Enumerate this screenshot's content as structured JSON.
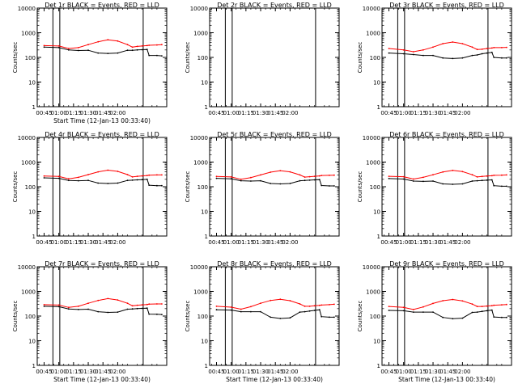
{
  "chart_data": [
    {
      "type": "line",
      "title": "Det 1r BLACK = Events, RED = LLD",
      "xlabel": "Start Time (12-Jan-13 00:33:40)",
      "ylabel": "Counts/sec",
      "yscale": "log",
      "ylim": [
        1,
        10000
      ],
      "xticks": [
        "00:45",
        "01:00",
        "01:15",
        "01:30",
        "01:45",
        "02:00"
      ],
      "yticks": [
        "1",
        "10",
        "100",
        "1000",
        "10000"
      ],
      "x_minutes": [
        -15,
        0,
        10,
        20,
        30,
        40,
        50,
        60,
        70,
        75,
        80,
        85,
        90,
        92,
        100,
        105
      ],
      "series": [
        {
          "color": "#000000",
          "values": [
            260,
            250,
            200,
            190,
            195,
            150,
            145,
            150,
            195,
            195,
            200,
            205,
            210,
            120,
            120,
            115
          ]
        },
        {
          "color": "#ff0000",
          "values": [
            300,
            290,
            230,
            250,
            330,
            430,
            520,
            460,
            330,
            260,
            280,
            290,
            300,
            310,
            320,
            330
          ]
        }
      ],
      "markers_minutes": [
        -6,
        1,
        86
      ]
    },
    {
      "type": "line",
      "title": "Det 2r BLACK = Events, RED = LLD",
      "xlabel": "",
      "ylabel": "Counts/sec",
      "yscale": "log",
      "ylim": [
        1,
        10000
      ],
      "xticks": [
        "00:45",
        "01:00",
        "01:15",
        "01:30",
        "01:45",
        "02:00"
      ],
      "yticks": [
        "1",
        "10",
        "100",
        "1000",
        "10000"
      ],
      "x_minutes": [],
      "series": [],
      "markers_minutes": [
        -6,
        1,
        86
      ]
    },
    {
      "type": "line",
      "title": "Det 3r BLACK = Events, RED = LLD",
      "xlabel": "",
      "ylabel": "Counts/sec",
      "yscale": "log",
      "ylim": [
        1,
        10000
      ],
      "xticks": [
        "00:45",
        "01:00",
        "01:15",
        "01:30",
        "01:45",
        "02:00"
      ],
      "yticks": [
        "1",
        "10",
        "100",
        "1000",
        "10000"
      ],
      "x_minutes": [
        -15,
        0,
        10,
        20,
        30,
        40,
        50,
        60,
        70,
        75,
        80,
        85,
        90,
        92,
        100,
        105
      ],
      "series": [
        {
          "color": "#000000",
          "values": [
            150,
            140,
            130,
            120,
            120,
            95,
            90,
            95,
            120,
            125,
            140,
            150,
            160,
            100,
            95,
            95
          ]
        },
        {
          "color": "#ff0000",
          "values": [
            230,
            200,
            170,
            200,
            260,
            360,
            420,
            360,
            260,
            210,
            215,
            230,
            240,
            250,
            250,
            255
          ]
        }
      ],
      "markers_minutes": [
        -6,
        1,
        86
      ]
    },
    {
      "type": "line",
      "title": "Det 4r BLACK = Events, RED = LLD",
      "xlabel": "",
      "ylabel": "Counts/sec",
      "yscale": "log",
      "ylim": [
        1,
        10000
      ],
      "xticks": [
        "00:45",
        "01:00",
        "01:15",
        "01:30",
        "01:45",
        "02:00"
      ],
      "yticks": [
        "1",
        "10",
        "100",
        "1000",
        "10000"
      ],
      "x_minutes": [
        -15,
        0,
        10,
        20,
        30,
        40,
        50,
        60,
        70,
        75,
        80,
        85,
        90,
        92,
        100,
        105
      ],
      "series": [
        {
          "color": "#000000",
          "values": [
            230,
            220,
            180,
            175,
            180,
            140,
            135,
            140,
            180,
            185,
            190,
            195,
            200,
            115,
            110,
            110
          ]
        },
        {
          "color": "#ff0000",
          "values": [
            270,
            260,
            210,
            240,
            310,
            400,
            470,
            420,
            310,
            250,
            265,
            275,
            285,
            295,
            300,
            300
          ]
        }
      ],
      "markers_minutes": [
        -6,
        1,
        86
      ]
    },
    {
      "type": "line",
      "title": "Det 5r BLACK = Events, RED = LLD",
      "xlabel": "",
      "ylabel": "Counts/sec",
      "yscale": "log",
      "ylim": [
        1,
        10000
      ],
      "xticks": [
        "00:45",
        "01:00",
        "01:15",
        "01:30",
        "01:45",
        "02:00"
      ],
      "yticks": [
        "1",
        "10",
        "100",
        "1000",
        "10000"
      ],
      "x_minutes": [
        -15,
        0,
        10,
        20,
        30,
        40,
        50,
        60,
        70,
        75,
        80,
        85,
        90,
        92,
        100,
        105
      ],
      "series": [
        {
          "color": "#000000",
          "values": [
            220,
            210,
            175,
            170,
            175,
            135,
            130,
            135,
            175,
            180,
            185,
            190,
            195,
            112,
            108,
            108
          ]
        },
        {
          "color": "#ff0000",
          "values": [
            260,
            250,
            200,
            235,
            300,
            390,
            450,
            400,
            300,
            245,
            255,
            265,
            275,
            285,
            290,
            295
          ]
        }
      ],
      "markers_minutes": [
        -6,
        1,
        86
      ]
    },
    {
      "type": "line",
      "title": "Det 6r BLACK = Events, RED = LLD",
      "xlabel": "",
      "ylabel": "Counts/sec",
      "yscale": "log",
      "ylim": [
        1,
        10000
      ],
      "xticks": [
        "00:45",
        "01:00",
        "01:15",
        "01:30",
        "01:45",
        "02:00"
      ],
      "yticks": [
        "1",
        "10",
        "100",
        "1000",
        "10000"
      ],
      "x_minutes": [
        -15,
        0,
        10,
        20,
        30,
        40,
        50,
        60,
        70,
        75,
        80,
        85,
        90,
        92,
        100,
        105
      ],
      "series": [
        {
          "color": "#000000",
          "values": [
            215,
            205,
            170,
            165,
            170,
            130,
            125,
            130,
            170,
            175,
            180,
            185,
            190,
            110,
            105,
            105
          ]
        },
        {
          "color": "#ff0000",
          "values": [
            265,
            255,
            205,
            240,
            305,
            395,
            460,
            410,
            305,
            250,
            260,
            270,
            280,
            290,
            295,
            300
          ]
        }
      ],
      "markers_minutes": [
        -6,
        1,
        86
      ]
    },
    {
      "type": "line",
      "title": "Det 7r BLACK = Events, RED = LLD",
      "xlabel": "Start Time (12-Jan-13 00:33:40)",
      "ylabel": "Counts/sec",
      "yscale": "log",
      "ylim": [
        1,
        10000
      ],
      "xticks": [
        "00:45",
        "01:00",
        "01:15",
        "01:30",
        "01:45",
        "02:00"
      ],
      "yticks": [
        "1",
        "10",
        "100",
        "1000",
        "10000"
      ],
      "x_minutes": [
        -15,
        0,
        10,
        20,
        30,
        40,
        50,
        60,
        70,
        75,
        80,
        85,
        90,
        92,
        100,
        105
      ],
      "series": [
        {
          "color": "#000000",
          "values": [
            250,
            240,
            195,
            185,
            190,
            150,
            140,
            145,
            190,
            195,
            200,
            205,
            210,
            120,
            118,
            115
          ]
        },
        {
          "color": "#ff0000",
          "values": [
            290,
            280,
            225,
            250,
            330,
            430,
            510,
            450,
            330,
            260,
            275,
            285,
            295,
            305,
            310,
            310
          ]
        }
      ],
      "markers_minutes": [
        -6,
        1,
        86
      ]
    },
    {
      "type": "line",
      "title": "Det 8r BLACK = Events, RED = LLD",
      "xlabel": "Start Time (12-Jan-13 00:33:40)",
      "ylabel": "Counts/sec",
      "yscale": "log",
      "ylim": [
        1,
        10000
      ],
      "xticks": [
        "00:45",
        "01:00",
        "01:15",
        "01:30",
        "01:45",
        "02:00"
      ],
      "yticks": [
        "1",
        "10",
        "100",
        "1000",
        "10000"
      ],
      "x_minutes": [
        -15,
        0,
        10,
        20,
        30,
        40,
        50,
        60,
        70,
        75,
        80,
        85,
        90,
        92,
        100,
        105
      ],
      "series": [
        {
          "color": "#000000",
          "values": [
            180,
            175,
            150,
            150,
            150,
            90,
            80,
            85,
            145,
            150,
            160,
            170,
            180,
            95,
            90,
            90
          ]
        },
        {
          "color": "#ff0000",
          "values": [
            250,
            230,
            190,
            240,
            330,
            430,
            480,
            420,
            310,
            250,
            250,
            260,
            270,
            280,
            290,
            300
          ]
        }
      ],
      "markers_minutes": [
        -6,
        1,
        86
      ]
    },
    {
      "type": "line",
      "title": "Det 9r BLACK = Events, RED = LLD",
      "xlabel": "Start Time (12-Jan-13 00:33:40)",
      "ylabel": "Counts/sec",
      "yscale": "log",
      "ylim": [
        1,
        10000
      ],
      "xticks": [
        "00:45",
        "01:00",
        "01:15",
        "01:30",
        "01:45",
        "02:00"
      ],
      "yticks": [
        "1",
        "10",
        "100",
        "1000",
        "10000"
      ],
      "x_minutes": [
        -15,
        0,
        10,
        20,
        30,
        40,
        50,
        60,
        70,
        75,
        80,
        85,
        90,
        92,
        100,
        105
      ],
      "series": [
        {
          "color": "#000000",
          "values": [
            170,
            165,
            145,
            145,
            145,
            88,
            78,
            82,
            140,
            145,
            155,
            165,
            175,
            92,
            88,
            88
          ]
        },
        {
          "color": "#ff0000",
          "values": [
            245,
            225,
            185,
            235,
            325,
            420,
            470,
            410,
            305,
            245,
            245,
            255,
            265,
            275,
            285,
            295
          ]
        }
      ],
      "markers_minutes": [
        -6,
        1,
        86
      ]
    }
  ]
}
